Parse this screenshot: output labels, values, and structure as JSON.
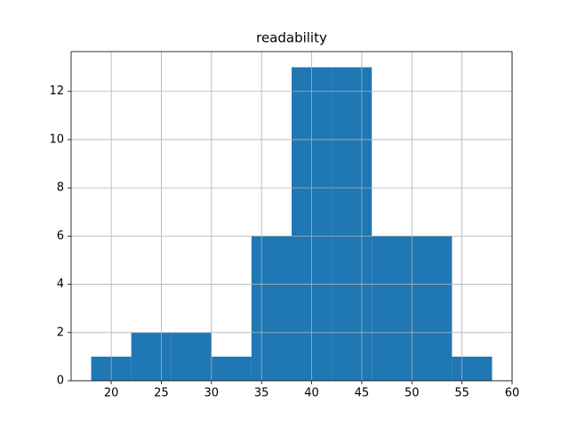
{
  "chart_data": {
    "type": "histogram",
    "title": "readability",
    "bins": [
      18,
      22,
      26,
      30,
      34,
      38,
      42,
      46,
      50,
      54,
      58
    ],
    "counts": [
      1,
      2,
      2,
      1,
      6,
      13,
      13,
      6,
      6,
      1
    ],
    "color": "#1f77b4",
    "xlim": [
      16,
      60
    ],
    "xticks": [
      20,
      25,
      30,
      35,
      40,
      45,
      50,
      55,
      60
    ],
    "ylim": [
      0,
      13.65
    ],
    "yticks": [
      0,
      2,
      4,
      6,
      8,
      10,
      12
    ],
    "grid": true
  }
}
